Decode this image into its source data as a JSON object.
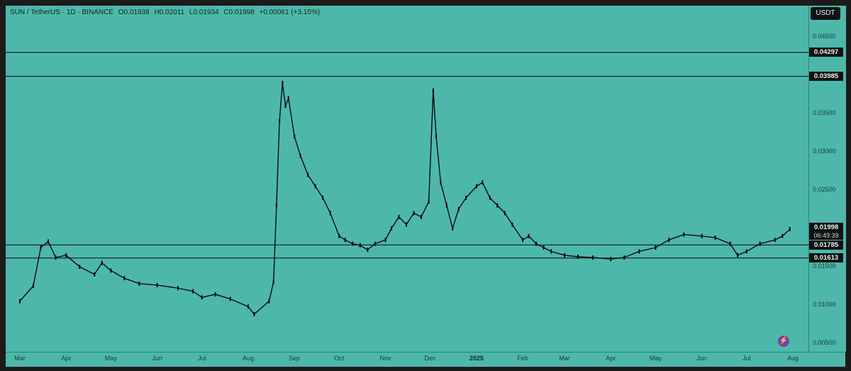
{
  "header": {
    "symbol": "SUN / TetherUS · 1D · BINANCE",
    "open": "O0.01938",
    "high": "H0.02011",
    "low": "L0.01934",
    "close": "C0.01998",
    "change": "+0.00061 (+3.15%)"
  },
  "currency_button": "USDT",
  "colors": {
    "background": "#4db8aa",
    "candle": "#0a0a0a",
    "tag_bg": "#0d1111"
  },
  "chart_data": {
    "type": "line",
    "title": "",
    "xlabel": "",
    "ylabel": "",
    "ylim": [
      0.005,
      0.045
    ],
    "grid": false,
    "y_ticks": [
      "0.04500",
      "0.03500",
      "0.03000",
      "0.02500",
      "0.01500",
      "0.01000",
      "0.00500"
    ],
    "x_ticks": [
      "Mar",
      "Apr",
      "May",
      "Jun",
      "Jul",
      "Aug",
      "Sep",
      "Oct",
      "Nov",
      "Dec",
      "2025",
      "Feb",
      "Mar",
      "Apr",
      "May",
      "Jun",
      "Jul",
      "Aug"
    ],
    "horizontal_levels": [
      {
        "value": 0.04297,
        "label": "0.04297"
      },
      {
        "value": 0.03985,
        "label": "0.03985"
      },
      {
        "value": 0.01785,
        "label": "0.01785"
      },
      {
        "value": 0.01613,
        "label": "0.01613"
      }
    ],
    "last_price": {
      "value": 0.01998,
      "label": "0.01998",
      "countdown": "06:49:39"
    },
    "series": [
      {
        "x": [
          "2024-03-01",
          "2024-03-10",
          "2024-03-15",
          "2024-03-20",
          "2024-03-25",
          "2024-04-01",
          "2024-04-10",
          "2024-04-20",
          "2024-04-25",
          "2024-05-01",
          "2024-05-10",
          "2024-05-20",
          "2024-06-01",
          "2024-06-15",
          "2024-06-25",
          "2024-07-01",
          "2024-07-10",
          "2024-07-20",
          "2024-08-01",
          "2024-08-05",
          "2024-08-15",
          "2024-08-18",
          "2024-08-20",
          "2024-08-22",
          "2024-08-24",
          "2024-08-26",
          "2024-08-28",
          "2024-09-01",
          "2024-09-05",
          "2024-09-10",
          "2024-09-15",
          "2024-09-20",
          "2024-09-25",
          "2024-10-01",
          "2024-10-05",
          "2024-10-10",
          "2024-10-15",
          "2024-10-20",
          "2024-10-25",
          "2024-11-01",
          "2024-11-05",
          "2024-11-10",
          "2024-11-15",
          "2024-11-20",
          "2024-11-25",
          "2024-11-30",
          "2024-12-03",
          "2024-12-05",
          "2024-12-08",
          "2024-12-12",
          "2024-12-16",
          "2024-12-20",
          "2024-12-25",
          "2025-01-01",
          "2025-01-05",
          "2025-01-10",
          "2025-01-15",
          "2025-01-20",
          "2025-01-25",
          "2025-02-01",
          "2025-02-05",
          "2025-02-10",
          "2025-02-15",
          "2025-02-20",
          "2025-03-01",
          "2025-03-10",
          "2025-03-20",
          "2025-04-01",
          "2025-04-10",
          "2025-04-20",
          "2025-05-01",
          "2025-05-10",
          "2025-05-20",
          "2025-06-01",
          "2025-06-10",
          "2025-06-20",
          "2025-06-25",
          "2025-07-01",
          "2025-07-10",
          "2025-07-20",
          "2025-07-25",
          "2025-07-30"
        ],
        "y": [
          0.0105,
          0.0125,
          0.0175,
          0.0183,
          0.0162,
          0.0165,
          0.015,
          0.014,
          0.0155,
          0.0145,
          0.0135,
          0.0128,
          0.0126,
          0.0122,
          0.0118,
          0.011,
          0.0114,
          0.0108,
          0.0098,
          0.0088,
          0.0105,
          0.013,
          0.023,
          0.034,
          0.039,
          0.036,
          0.037,
          0.032,
          0.0295,
          0.027,
          0.0255,
          0.024,
          0.022,
          0.019,
          0.0185,
          0.018,
          0.0178,
          0.0172,
          0.018,
          0.0185,
          0.02,
          0.0215,
          0.0205,
          0.022,
          0.0215,
          0.0235,
          0.038,
          0.032,
          0.026,
          0.023,
          0.02,
          0.0225,
          0.024,
          0.0255,
          0.026,
          0.024,
          0.023,
          0.022,
          0.0205,
          0.0185,
          0.019,
          0.018,
          0.0175,
          0.017,
          0.0165,
          0.0163,
          0.0162,
          0.016,
          0.0162,
          0.017,
          0.0175,
          0.0185,
          0.0192,
          0.019,
          0.0188,
          0.018,
          0.0165,
          0.017,
          0.018,
          0.0185,
          0.019,
          0.0199
        ]
      }
    ]
  }
}
